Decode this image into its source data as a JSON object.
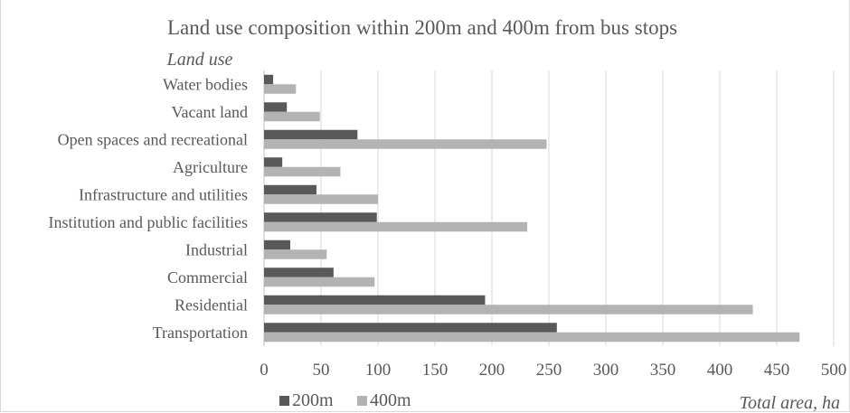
{
  "chart_data": {
    "type": "bar",
    "orientation": "horizontal",
    "title": "Land use composition within 200m and 400m from bus stops",
    "ylabel": "Land use",
    "xlabel": "Total area, ha",
    "categories": [
      "Transportation",
      "Residential",
      "Commercial",
      "Industrial",
      "Institution and public facilities",
      "Infrastructure and utilities",
      "Agriculture",
      "Open spaces and recreational",
      "Vacant land",
      "Water bodies"
    ],
    "series": [
      {
        "name": "200m",
        "color": "#595959",
        "values": [
          257,
          194,
          61,
          23,
          99,
          46,
          16,
          82,
          20,
          8
        ]
      },
      {
        "name": "400m",
        "color": "#b3b3b3",
        "values": [
          470,
          429,
          97,
          55,
          231,
          100,
          67,
          248,
          49,
          28
        ]
      }
    ],
    "xlim": [
      0,
      500
    ],
    "xticks": [
      0,
      50,
      100,
      150,
      200,
      250,
      300,
      350,
      400,
      450,
      500
    ],
    "grid": "vertical",
    "legend": "bottom-left"
  }
}
